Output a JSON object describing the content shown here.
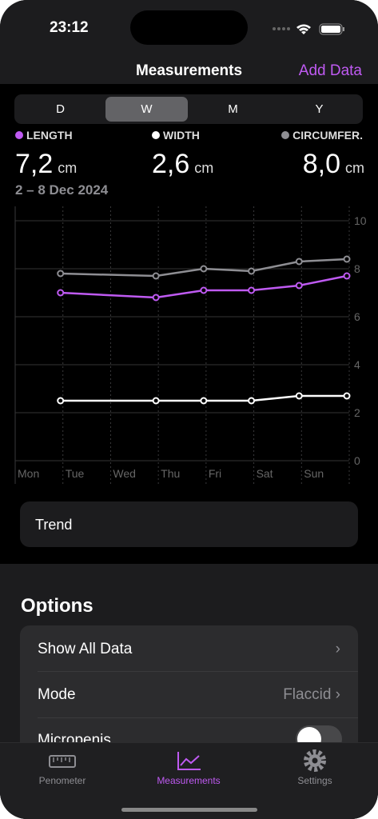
{
  "status_bar": {
    "time": "23:12"
  },
  "nav": {
    "title": "Measurements",
    "action": "Add Data"
  },
  "segments": {
    "items": [
      "D",
      "W",
      "M",
      "Y"
    ],
    "selected": 1
  },
  "summary": [
    {
      "value": "7,2",
      "unit": "cm"
    },
    {
      "value": "2,6",
      "unit": "cm"
    },
    {
      "value": "8,0",
      "unit": "cm"
    }
  ],
  "date_range": "2 – 8 Dec 2024",
  "chart_data": {
    "type": "line",
    "categories": [
      "Mon",
      "Tue",
      "Wed",
      "Thu",
      "Fri",
      "Sat",
      "Sun"
    ],
    "series": [
      {
        "name": "LENGTH",
        "color": "#bf5af2",
        "values": [
          7.0,
          null,
          6.8,
          7.1,
          7.1,
          7.3,
          7.7
        ]
      },
      {
        "name": "WIDTH",
        "color": "#ffffff",
        "values": [
          2.5,
          null,
          2.5,
          2.5,
          2.5,
          2.7,
          2.7
        ]
      },
      {
        "name": "CIRCUMFER.",
        "color": "#8e8e93",
        "values": [
          7.8,
          null,
          7.7,
          8.0,
          7.9,
          8.3,
          8.4
        ]
      }
    ],
    "ylim": [
      0,
      10
    ],
    "yticks": [
      0,
      2,
      4,
      6,
      8,
      10
    ],
    "grid": true
  },
  "trend": "Trend",
  "options": {
    "title": "Options",
    "rows": [
      {
        "label": "Show All Data"
      },
      {
        "label": "Mode",
        "value": "Flaccid"
      },
      {
        "label": "Micropenis"
      }
    ]
  },
  "tabs": [
    "Penometer",
    "Measurements",
    "Settings"
  ]
}
